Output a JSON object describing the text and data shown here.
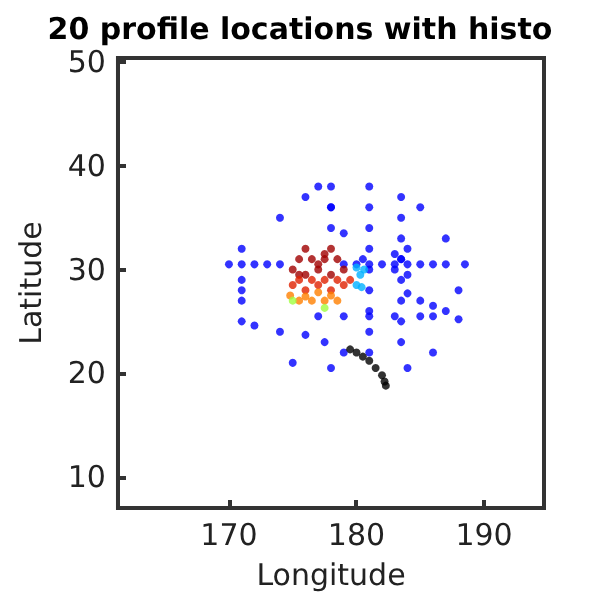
{
  "chart_data": {
    "type": "scatter",
    "title": "20 profile locations with histo",
    "xlabel": "Longitude",
    "ylabel": "Latitude",
    "xlim": [
      161.3,
      194.7
    ],
    "ylim": [
      7,
      50.4
    ],
    "xticks": [
      170,
      180,
      190
    ],
    "yticks": [
      10,
      20,
      30,
      40,
      50
    ],
    "grid": false,
    "marker": "circle",
    "series": [
      {
        "color": "#0000ff",
        "x": [
          170,
          171,
          172,
          173,
          174,
          179,
          180,
          181,
          182,
          183,
          184,
          185,
          186,
          187,
          188.5,
          171,
          171,
          171,
          171,
          171,
          181,
          181,
          181,
          181,
          181,
          181,
          181,
          181,
          181,
          183.5,
          183.5,
          183.5,
          183.5,
          183.5,
          183.5,
          183.5,
          183.5,
          178,
          178,
          178,
          177,
          178,
          179,
          180.5,
          172,
          174,
          176,
          177.5,
          179,
          184,
          185,
          186,
          187,
          188,
          177,
          179,
          181,
          183,
          185,
          186,
          174,
          176,
          185,
          187,
          186,
          178,
          184,
          175,
          188,
          183,
          183.5,
          184,
          183,
          184
        ],
        "values": [
          30.5,
          30.5,
          30.5,
          30.5,
          30.5,
          30.5,
          30.5,
          30.5,
          30.5,
          30.5,
          30.5,
          30.5,
          30.5,
          30.5,
          30.5,
          25,
          27,
          29,
          32,
          28,
          22,
          24,
          26,
          28,
          30,
          32,
          34,
          36,
          38,
          23,
          25,
          27,
          29,
          31,
          33,
          35,
          37,
          34,
          36,
          38,
          38,
          36,
          33.5,
          31,
          24.6,
          24,
          23.7,
          23,
          22,
          27.7,
          27,
          26.5,
          26,
          25.2,
          25.5,
          25.5,
          25.5,
          25.5,
          25.5,
          25.5,
          35,
          37,
          36,
          33,
          22,
          20.5,
          20.5,
          21,
          28,
          30,
          31,
          29.5,
          31.5,
          32
        ]
      },
      {
        "color": "#000000",
        "x": [
          179.5,
          180,
          180.5,
          181,
          181.5,
          182,
          182.2,
          182.3
        ],
        "values": [
          22.3,
          22,
          21.6,
          21.2,
          20.5,
          19.8,
          19.2,
          18.8
        ]
      },
      {
        "color": "#a00000",
        "x": [
          175,
          175.5,
          176,
          176.5,
          177,
          177.5,
          178,
          178.5,
          179,
          176,
          177,
          178,
          175.5,
          177.5
        ],
        "values": [
          30,
          31,
          32,
          31,
          30,
          31.5,
          32,
          31,
          30,
          29.5,
          30.5,
          29.5,
          29.5,
          31
        ]
      },
      {
        "color": "#e02000",
        "x": [
          175,
          175.5,
          176,
          176.5,
          177,
          177.5,
          178,
          178.5,
          179,
          179.5
        ],
        "values": [
          28.5,
          29,
          28,
          29,
          28.5,
          29,
          28,
          29,
          28.5,
          29
        ]
      },
      {
        "color": "#ff8000",
        "x": [
          174.8,
          175.5,
          176,
          176.5,
          177,
          177.5,
          178,
          178.5
        ],
        "values": [
          27.5,
          27,
          27.4,
          27,
          27.8,
          27,
          27.5,
          27
        ]
      },
      {
        "color": "#a0ff40",
        "x": [
          175,
          177.5
        ],
        "values": [
          27,
          26.3
        ]
      },
      {
        "color": "#00b0ff",
        "x": [
          180,
          180.3,
          180.6,
          180.4,
          180
        ],
        "values": [
          28.5,
          29.5,
          30,
          28.3,
          30.2
        ]
      }
    ]
  }
}
